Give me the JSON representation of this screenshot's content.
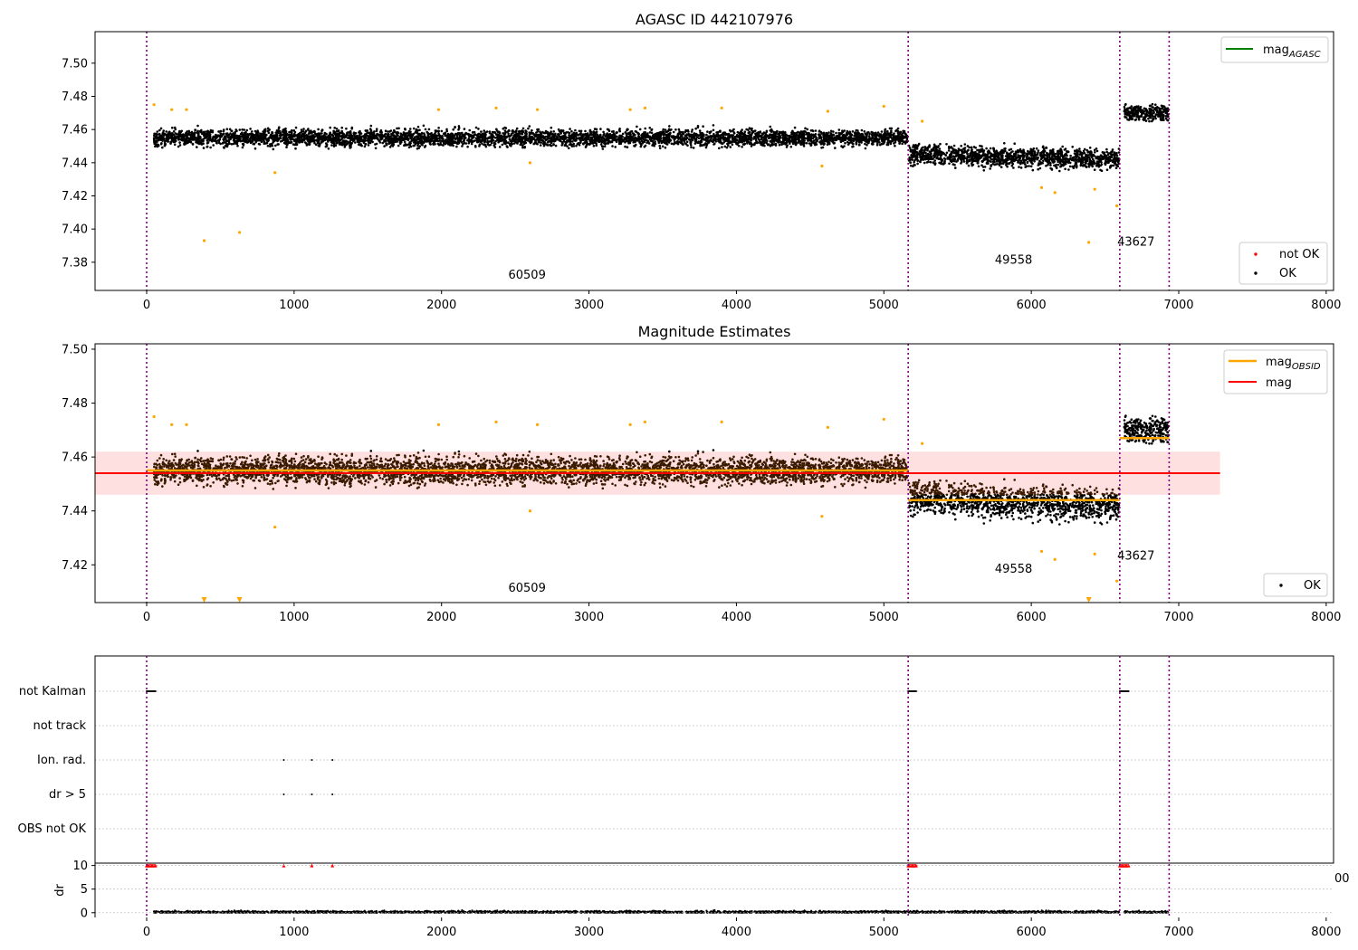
{
  "figure": {
    "panels": [
      "top",
      "middle",
      "bottom"
    ]
  },
  "chart_data": [
    {
      "type": "scatter",
      "title": "AGASC ID 442107976",
      "xlim": [
        -350,
        8050
      ],
      "ylim": [
        7.363,
        7.519
      ],
      "xticks": [
        0,
        1000,
        2000,
        3000,
        4000,
        5000,
        6000,
        7000,
        8000
      ],
      "yticks": [
        7.38,
        7.4,
        7.42,
        7.44,
        7.46,
        7.48,
        7.5
      ],
      "vlines": [
        0,
        5165,
        6600,
        6935
      ],
      "annotations": [
        {
          "text": "60509",
          "x": 2580,
          "y": 7.37
        },
        {
          "text": "49558",
          "x": 5880,
          "y": 7.379
        },
        {
          "text": "43627",
          "x": 6710,
          "y": 7.39
        }
      ],
      "legend_upper": [
        {
          "label": "mag",
          "sub": "AGASC",
          "color": "#008000"
        }
      ],
      "legend_lower": [
        {
          "label": "not OK",
          "color": "#ff0000"
        },
        {
          "label": "OK",
          "color": "#000000"
        }
      ],
      "segments": [
        {
          "x": [
            50,
            5160
          ],
          "center": 7.455,
          "spread": 0.005
        },
        {
          "x": [
            5170,
            6595
          ],
          "center": 7.445,
          "slope_end": 7.442,
          "spread": 0.006
        },
        {
          "x": [
            6630,
            6930
          ],
          "center": 7.47,
          "spread": 0.005
        }
      ],
      "outliers": [
        {
          "x": 50,
          "y": 7.475
        },
        {
          "x": 170,
          "y": 7.472
        },
        {
          "x": 270,
          "y": 7.472
        },
        {
          "x": 390,
          "y": 7.393
        },
        {
          "x": 630,
          "y": 7.398
        },
        {
          "x": 870,
          "y": 7.434
        },
        {
          "x": 1980,
          "y": 7.472
        },
        {
          "x": 2370,
          "y": 7.473
        },
        {
          "x": 2600,
          "y": 7.44
        },
        {
          "x": 2650,
          "y": 7.472
        },
        {
          "x": 3280,
          "y": 7.472
        },
        {
          "x": 3380,
          "y": 7.473
        },
        {
          "x": 3900,
          "y": 7.473
        },
        {
          "x": 4580,
          "y": 7.438
        },
        {
          "x": 4620,
          "y": 7.471
        },
        {
          "x": 5000,
          "y": 7.474
        },
        {
          "x": 5260,
          "y": 7.465
        },
        {
          "x": 6070,
          "y": 7.425
        },
        {
          "x": 6160,
          "y": 7.422
        },
        {
          "x": 6390,
          "y": 7.392
        },
        {
          "x": 6430,
          "y": 7.424
        },
        {
          "x": 6580,
          "y": 7.414
        }
      ]
    },
    {
      "type": "scatter",
      "title": "Magnitude Estimates",
      "xlim": [
        -350,
        8050
      ],
      "ylim": [
        7.406,
        7.502
      ],
      "xticks": [
        0,
        1000,
        2000,
        3000,
        4000,
        5000,
        6000,
        7000,
        8000
      ],
      "yticks": [
        7.42,
        7.44,
        7.46,
        7.48,
        7.5
      ],
      "vlines": [
        0,
        5165,
        6600,
        6935
      ],
      "annotations": [
        {
          "text": "60509",
          "x": 2580,
          "y": 7.41
        },
        {
          "text": "49558",
          "x": 5880,
          "y": 7.417
        },
        {
          "text": "43627",
          "x": 6710,
          "y": 7.422
        }
      ],
      "mag": 7.454,
      "mag_band": [
        7.446,
        7.462
      ],
      "band_x": [
        -350,
        7280
      ],
      "obsid_mags": [
        {
          "x": [
            0,
            5165
          ],
          "y": 7.455
        },
        {
          "x": [
            5165,
            6600
          ],
          "y": 7.444
        },
        {
          "x": [
            6600,
            6935
          ],
          "y": 7.467
        }
      ],
      "legend_upper": [
        {
          "label": "mag",
          "sub": "OBSID",
          "color": "#ffa500"
        },
        {
          "label": "mag",
          "sub": "",
          "color": "#ff0000"
        }
      ],
      "legend_lower": [
        {
          "label": "OK",
          "color": "#000000"
        }
      ],
      "lower_limits": [
        {
          "x": 390
        },
        {
          "x": 630
        },
        {
          "x": 6390
        }
      ]
    },
    {
      "type": "scatter",
      "xlim": [
        -350,
        8050
      ],
      "xticks": [
        0,
        1000,
        2000,
        3000,
        4000,
        5000,
        6000,
        7000,
        8000
      ],
      "flag_rows": [
        "not Kalman",
        "not track",
        "Ion. rad.",
        "dr > 5",
        "OBS not OK"
      ],
      "flag_points": [
        {
          "row": "not Kalman",
          "x": [
            0,
            60
          ]
        },
        {
          "row": "not Kalman",
          "x": [
            5165,
            5220
          ]
        },
        {
          "row": "not Kalman",
          "x": [
            6600,
            6660
          ]
        },
        {
          "row": "Ion. rad.",
          "x": [
            930,
            930
          ]
        },
        {
          "row": "Ion. rad.",
          "x": [
            1120,
            1120
          ]
        },
        {
          "row": "Ion. rad.",
          "x": [
            1260,
            1260
          ]
        },
        {
          "row": "dr > 5",
          "x": [
            930,
            930
          ]
        },
        {
          "row": "dr > 5",
          "x": [
            1120,
            1120
          ]
        },
        {
          "row": "dr > 5",
          "x": [
            1260,
            1260
          ]
        }
      ],
      "dr_ylabel": "dr",
      "dr_yticks": [
        0,
        5,
        10
      ],
      "dr_ylim": [
        -1,
        10.5
      ],
      "dr_clip": 10,
      "dr_red_x": [
        [
          0,
          60
        ],
        [
          5165,
          5220
        ],
        [
          6600,
          6660
        ],
        [
          930,
          930
        ],
        [
          1120,
          1120
        ],
        [
          1260,
          1260
        ]
      ],
      "edge_label": "00"
    }
  ]
}
